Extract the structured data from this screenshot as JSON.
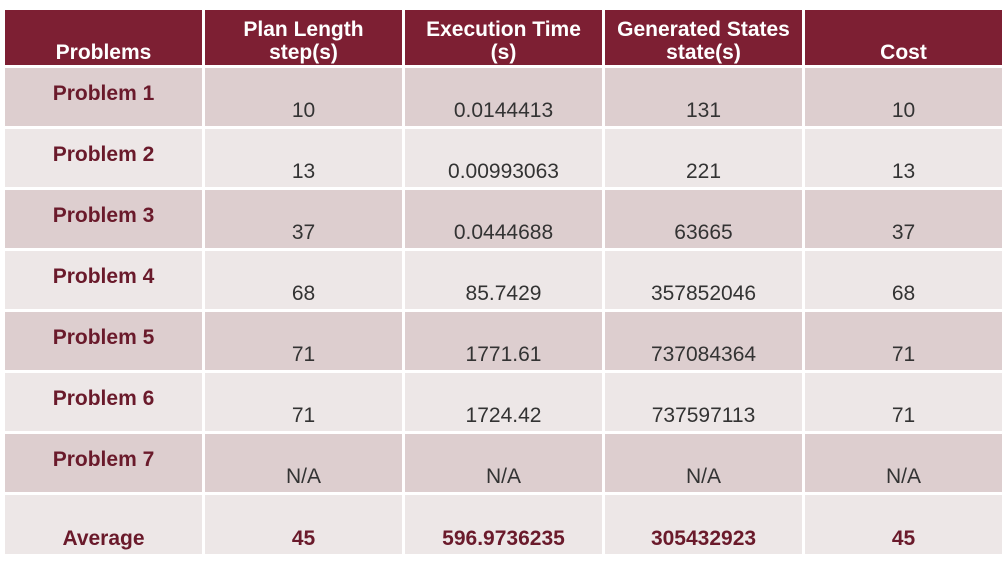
{
  "table": {
    "headers": [
      [
        "Problems"
      ],
      [
        "Plan Length",
        "step(s)"
      ],
      [
        "Execution Time",
        "(s)"
      ],
      [
        "Generated States",
        "state(s)"
      ],
      [
        "Cost"
      ]
    ],
    "rows": [
      [
        "Problem 1",
        "10",
        "0.0144413",
        "131",
        "10"
      ],
      [
        "Problem 2",
        "13",
        "0.00993063",
        "221",
        "13"
      ],
      [
        "Problem 3",
        "37",
        "0.0444688",
        "63665",
        "37"
      ],
      [
        "Problem 4",
        "68",
        "85.7429",
        "357852046",
        "68"
      ],
      [
        "Problem 5",
        "71",
        "1771.61",
        "737084364",
        "71"
      ],
      [
        "Problem 6",
        "71",
        "1724.42",
        "737597113",
        "71"
      ],
      [
        "Problem 7",
        "N/A",
        "N/A",
        "N/A",
        "N/A"
      ]
    ],
    "average": [
      "Average",
      "45",
      "596.9736235",
      "305432923",
      "45"
    ]
  }
}
